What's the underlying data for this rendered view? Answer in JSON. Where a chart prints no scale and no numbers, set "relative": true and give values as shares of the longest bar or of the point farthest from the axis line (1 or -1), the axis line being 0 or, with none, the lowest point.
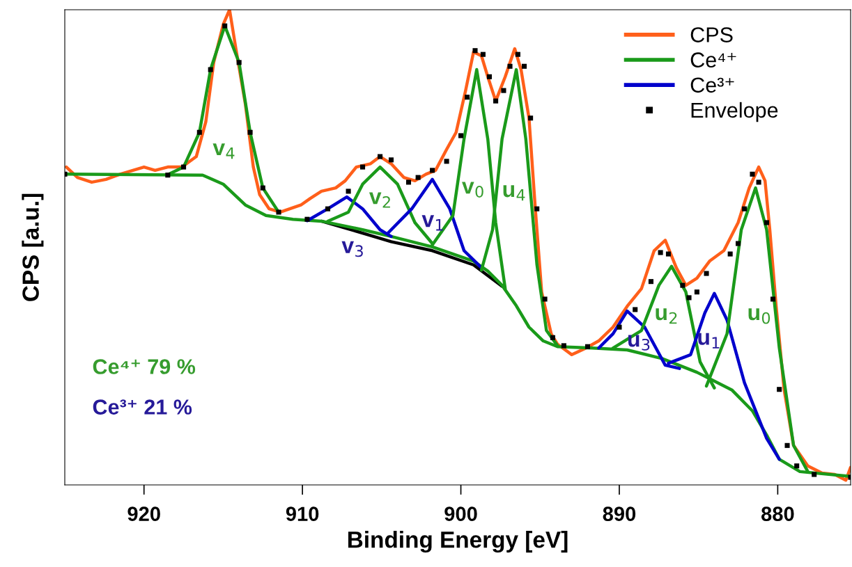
{
  "chart_data": {
    "type": "line",
    "xlabel": "Binding Energy [eV]",
    "ylabel": "CPS [a.u.]",
    "relative": true,
    "xlim": [
      925,
      875.4
    ],
    "xticks": [
      920,
      910,
      900,
      890,
      880
    ],
    "legend": "top right",
    "grid": false,
    "series": [
      {
        "name": "CPS",
        "color": "#ff5f1a",
        "x": [
          924.9,
          924.2,
          923.3,
          922.4,
          921.5,
          920.7,
          920.0,
          919.3,
          918.5,
          917.6,
          916.7,
          916.1,
          915.6,
          915.0,
          914.6,
          914.2,
          913.6,
          913.1,
          912.7,
          912.1,
          911.4,
          910.8,
          910.1,
          909.5,
          908.8,
          907.9,
          907.3,
          906.6,
          905.7,
          905.1,
          904.4,
          903.6,
          902.9,
          902.2,
          901.6,
          900.9,
          900.3,
          899.7,
          899.2,
          898.7,
          898.3,
          897.8,
          897.2,
          896.6,
          896.2,
          895.7,
          895.3,
          894.9,
          894.3,
          893.9,
          893.0,
          892.1,
          891.3,
          890.4,
          889.5,
          888.6,
          887.8,
          887.1,
          886.4,
          885.8,
          885.1,
          884.3,
          883.4,
          882.5,
          881.8,
          881.2,
          880.8,
          880.5,
          880.1,
          879.6,
          879.0,
          878.1,
          877.2,
          876.4,
          875.7,
          875.4
        ],
        "values": [
          0.669,
          0.647,
          0.637,
          0.643,
          0.654,
          0.662,
          0.669,
          0.662,
          0.669,
          0.669,
          0.691,
          0.764,
          0.889,
          0.969,
          1.0,
          0.918,
          0.801,
          0.669,
          0.611,
          0.581,
          0.574,
          0.581,
          0.589,
          0.603,
          0.618,
          0.625,
          0.64,
          0.669,
          0.676,
          0.691,
          0.676,
          0.647,
          0.64,
          0.654,
          0.662,
          0.706,
          0.742,
          0.83,
          0.911,
          0.903,
          0.859,
          0.808,
          0.859,
          0.918,
          0.874,
          0.772,
          0.581,
          0.406,
          0.318,
          0.296,
          0.274,
          0.288,
          0.303,
          0.332,
          0.376,
          0.413,
          0.493,
          0.515,
          0.457,
          0.42,
          0.435,
          0.471,
          0.493,
          0.552,
          0.625,
          0.669,
          0.64,
          0.537,
          0.376,
          0.201,
          0.083,
          0.04,
          0.025,
          0.022,
          0.01,
          0.037
        ]
      },
      {
        "color": "#000000",
        "x": [
          908.8,
          906.2,
          904.4,
          901.8,
          899.2,
          897.4
        ],
        "values": [
          0.555,
          0.53,
          0.512,
          0.493,
          0.463,
          0.418
        ]
      },
      {
        "color": "#1a9a1a",
        "x": [
          924.9,
          916.3,
          915.0,
          913.6,
          912.3,
          910.6,
          908.8,
          906.2,
          904.4,
          901.8,
          899.2,
          898.3,
          897.4,
          896.5,
          895.7,
          894.8,
          893.9,
          891.7,
          889.5,
          887.3,
          885.1,
          882.9,
          881.6,
          880.7,
          879.9,
          878.6,
          875.4
        ],
        "values": [
          0.654,
          0.652,
          0.633,
          0.589,
          0.567,
          0.559,
          0.555,
          0.537,
          0.523,
          0.501,
          0.471,
          0.45,
          0.42,
          0.377,
          0.332,
          0.303,
          0.291,
          0.288,
          0.284,
          0.266,
          0.237,
          0.2,
          0.156,
          0.105,
          0.054,
          0.028,
          0.018
        ]
      },
      {
        "name": "Ce⁴⁺",
        "color": "#1a9a1a",
        "x": [
          918.5,
          917.5,
          916.5,
          915.8,
          914.9,
          914.0,
          913.3,
          912.5,
          911.5
        ],
        "values": [
          0.653,
          0.669,
          0.742,
          0.874,
          0.966,
          0.889,
          0.742,
          0.625,
          0.574
        ]
      },
      {
        "name": "Ce³⁺",
        "color": "#0000cc",
        "x": [
          909.7,
          908.4,
          907.2,
          906.2,
          905.1,
          904.4
        ],
        "values": [
          0.556,
          0.581,
          0.606,
          0.581,
          0.537,
          0.523
        ]
      },
      {
        "color": "#1a9a1a",
        "x": [
          908.4,
          907.1,
          906.2,
          905.1,
          904.0,
          902.9,
          901.8
        ],
        "values": [
          0.555,
          0.574,
          0.633,
          0.669,
          0.633,
          0.552,
          0.508
        ]
      },
      {
        "color": "#0000cc",
        "x": [
          904.6,
          903.1,
          901.8,
          900.7,
          899.8,
          898.7
        ],
        "values": [
          0.53,
          0.581,
          0.643,
          0.581,
          0.493,
          0.457
        ]
      },
      {
        "color": "#1a9a1a",
        "x": [
          901.8,
          900.5,
          899.8,
          899.0,
          898.3,
          897.8,
          897.2
        ],
        "values": [
          0.505,
          0.567,
          0.728,
          0.874,
          0.728,
          0.552,
          0.413
        ]
      },
      {
        "color": "#1a9a1a",
        "x": [
          898.7,
          898.0,
          897.4,
          896.5,
          895.9,
          895.2,
          894.6,
          893.9
        ],
        "values": [
          0.452,
          0.537,
          0.728,
          0.874,
          0.728,
          0.464,
          0.325,
          0.293
        ]
      },
      {
        "color": "#0000cc",
        "x": [
          891.3,
          890.4,
          889.5,
          888.4,
          887.1,
          886.2
        ],
        "values": [
          0.288,
          0.318,
          0.366,
          0.332,
          0.252,
          0.245
        ]
      },
      {
        "color": "#1a9a1a",
        "x": [
          890.4,
          888.6,
          887.5,
          886.7,
          885.8,
          884.9,
          884.0
        ],
        "values": [
          0.288,
          0.325,
          0.42,
          0.46,
          0.406,
          0.259,
          0.204
        ]
      },
      {
        "color": "#0000cc",
        "x": [
          886.9,
          885.5,
          884.6,
          884.0,
          883.2,
          882.1,
          880.7,
          879.9
        ],
        "values": [
          0.256,
          0.274,
          0.362,
          0.403,
          0.347,
          0.215,
          0.098,
          0.054
        ]
      },
      {
        "color": "#1a9a1a",
        "x": [
          884.5,
          883.2,
          882.3,
          881.4,
          880.7,
          879.9,
          879.0,
          878.1
        ],
        "values": [
          0.208,
          0.318,
          0.537,
          0.625,
          0.537,
          0.288,
          0.083,
          0.028
        ]
      },
      {
        "name": "Envelope",
        "type": "scatter",
        "marker": "square",
        "color": "#000000",
        "x": [
          925.0,
          918.5,
          917.5,
          916.5,
          915.8,
          914.9,
          914.0,
          913.3,
          912.5,
          911.5,
          909.7,
          908.4,
          907.1,
          906.2,
          905.1,
          904.4,
          903.3,
          902.7,
          901.8,
          900.9,
          900.0,
          899.6,
          899.1,
          898.6,
          898.2,
          897.8,
          897.3,
          896.9,
          896.4,
          896.0,
          895.6,
          895.2,
          894.7,
          894.2,
          893.5,
          892.0,
          890.0,
          889.0,
          888.0,
          887.4,
          886.9,
          886.0,
          885.6,
          885.1,
          884.5,
          883.0,
          882.5,
          882.1,
          881.6,
          881.2,
          880.7,
          880.3,
          879.9,
          879.4,
          878.8,
          877.7,
          875.4
        ],
        "values": [
          0.654,
          0.652,
          0.669,
          0.742,
          0.874,
          0.966,
          0.889,
          0.742,
          0.625,
          0.574,
          0.559,
          0.581,
          0.618,
          0.669,
          0.691,
          0.684,
          0.637,
          0.647,
          0.662,
          0.681,
          0.735,
          0.816,
          0.914,
          0.906,
          0.859,
          0.808,
          0.83,
          0.881,
          0.906,
          0.881,
          0.772,
          0.581,
          0.391,
          0.31,
          0.293,
          0.291,
          0.332,
          0.369,
          0.428,
          0.489,
          0.486,
          0.42,
          0.394,
          0.406,
          0.445,
          0.486,
          0.508,
          0.581,
          0.654,
          0.637,
          0.552,
          0.391,
          0.201,
          0.083,
          0.04,
          0.022,
          0.016
        ]
      }
    ],
    "annotations": [
      "v$_{4}$",
      "v$_{3}$",
      "v$_{2}$",
      "v$_{1}$",
      "v$_{0}$",
      "u$_{4}$",
      "u$_{3}$",
      "u$_{2}$",
      "u$_{1}$",
      "u$_{0}$",
      "Ce⁴⁺ 79 %",
      "Ce³⁺ 21 %"
    ]
  }
}
